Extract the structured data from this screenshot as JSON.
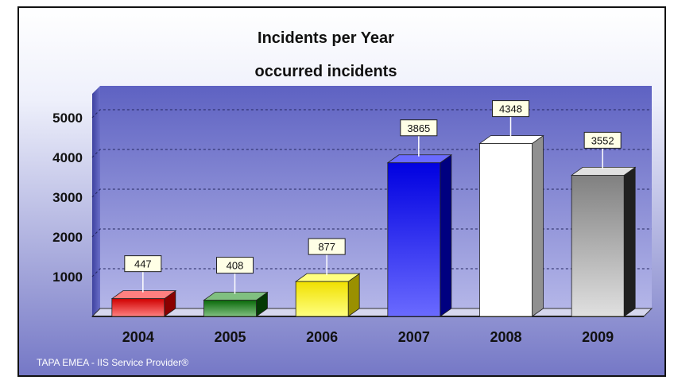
{
  "chart_data": {
    "type": "bar",
    "title": "Incidents per Year",
    "subtitle": "occurred incidents",
    "xlabel": "",
    "ylabel": "",
    "categories": [
      "2004",
      "2005",
      "2006",
      "2007",
      "2008",
      "2009"
    ],
    "values": [
      447,
      408,
      877,
      3865,
      4348,
      3552
    ],
    "yticks": [
      1000,
      2000,
      3000,
      4000,
      5000
    ],
    "ylim": [
      0,
      5600
    ],
    "grid": true,
    "legend": "none",
    "bar_colors": [
      [
        "#ff8080",
        "#d00000",
        "#8a0000"
      ],
      [
        "#80c080",
        "#0a6a0a",
        "#043a04"
      ],
      [
        "#ffff80",
        "#f0e000",
        "#9a9000"
      ],
      [
        "#6a6aff",
        "#0000e0",
        "#000080"
      ],
      [
        "#ffffff",
        "#ffffff",
        "#909090"
      ],
      [
        "#e0e0e0",
        "#808080",
        "#202020"
      ]
    ]
  },
  "footer": "TAPA EMEA - IIS Service Provider®"
}
